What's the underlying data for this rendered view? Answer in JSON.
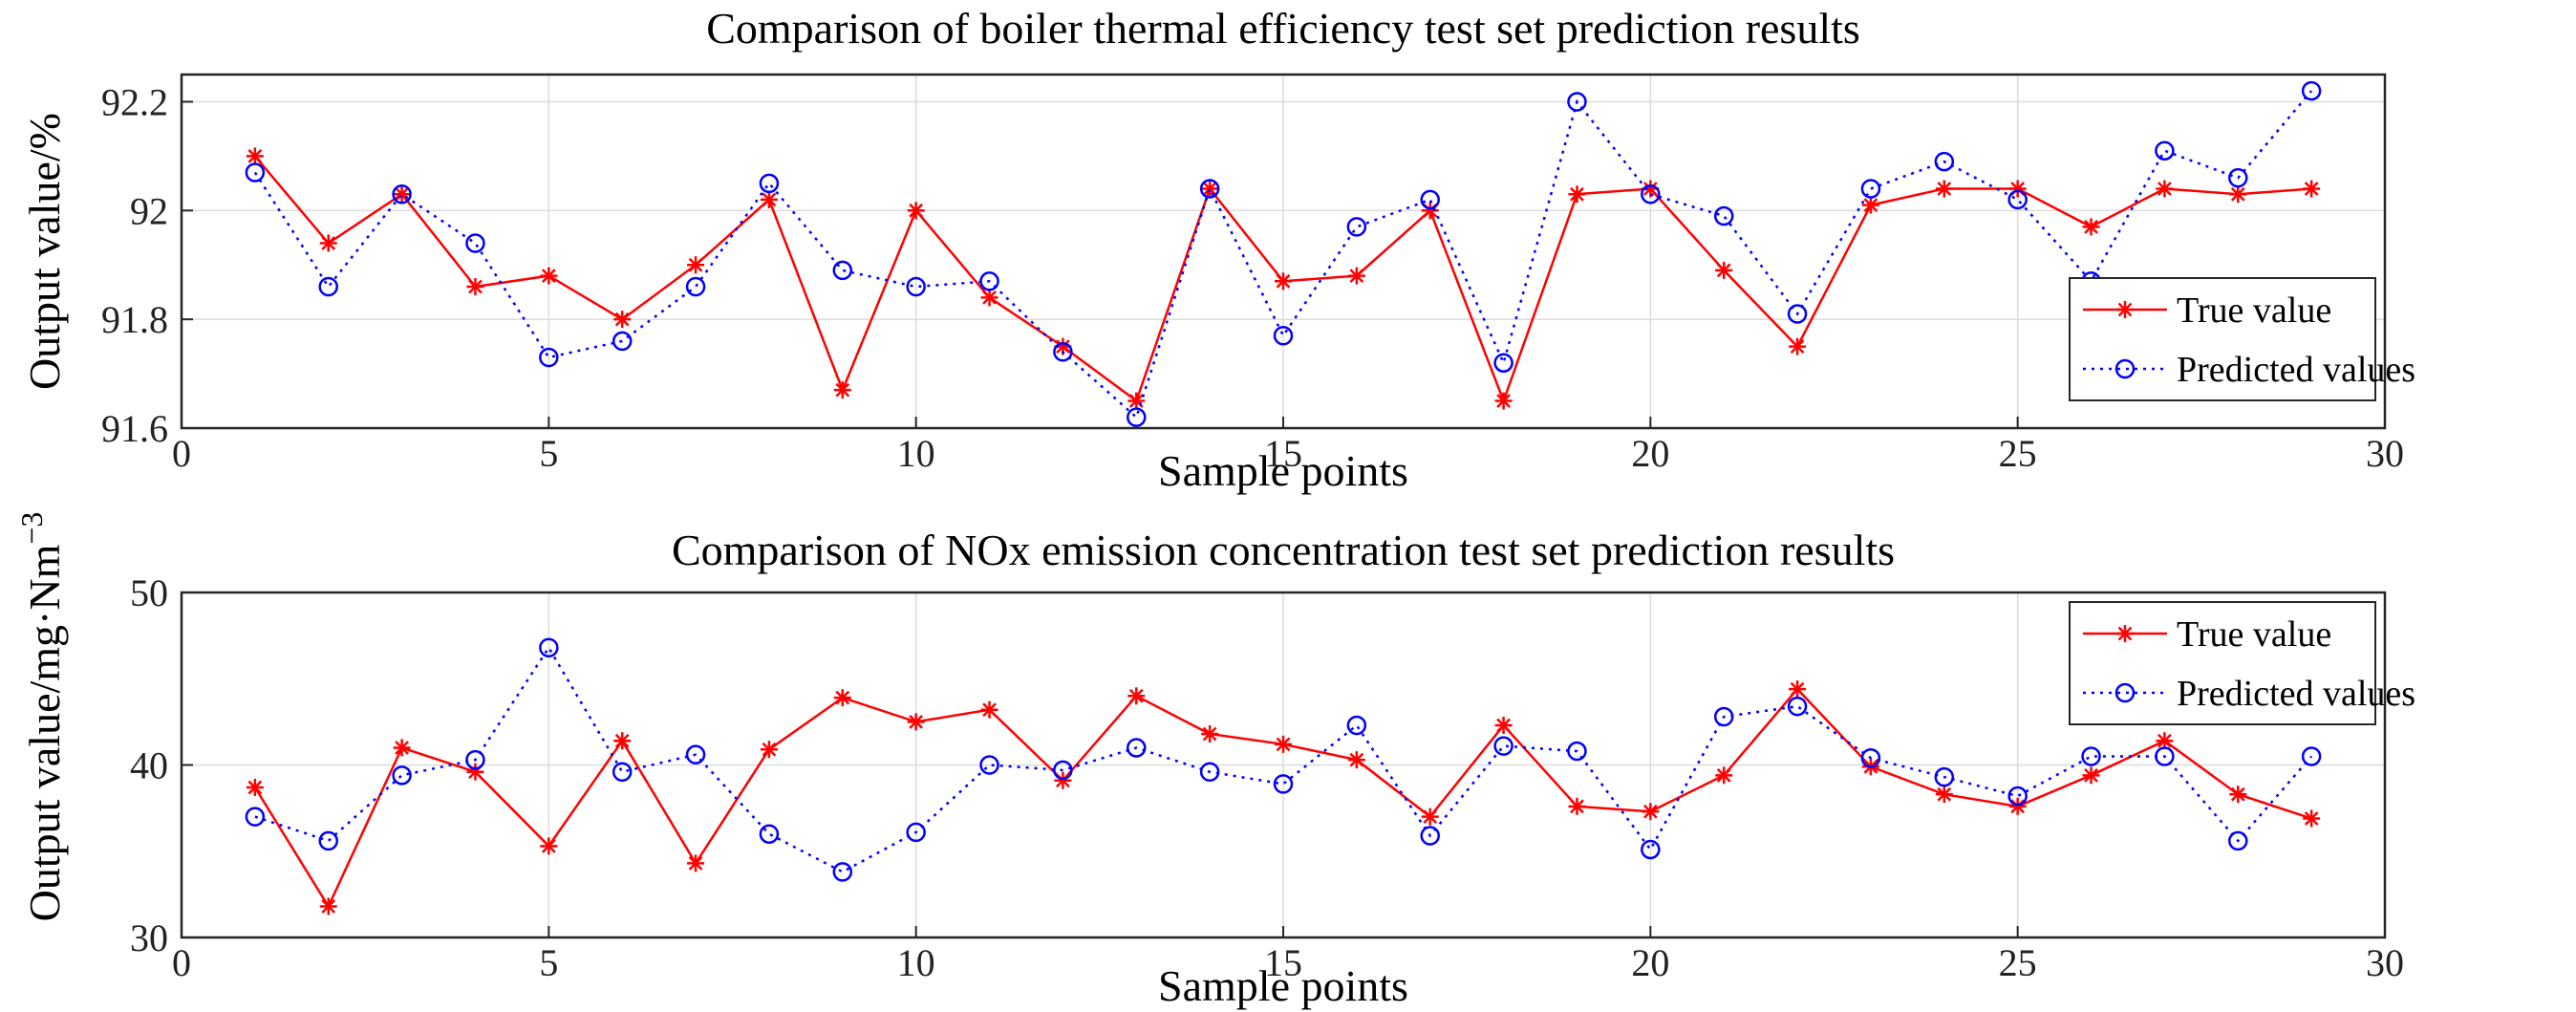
{
  "chart_data": [
    {
      "type": "line",
      "title": "Comparison of boiler thermal efficiency test set prediction results",
      "xlabel": "Sample points",
      "ylabel": "Output value/%",
      "xlim": [
        0,
        30
      ],
      "ylim": [
        91.6,
        92.25
      ],
      "xticks": [
        0,
        5,
        10,
        15,
        20,
        25,
        30
      ],
      "yticks": [
        91.6,
        91.8,
        92,
        92.2
      ],
      "ytick_labels": [
        "91.6",
        "91.8",
        "92",
        "92.2"
      ],
      "grid": true,
      "legend_position": "bottom-right",
      "x": [
        1,
        2,
        3,
        4,
        5,
        6,
        7,
        8,
        9,
        10,
        11,
        12,
        13,
        14,
        15,
        16,
        17,
        18,
        19,
        20,
        21,
        22,
        23,
        24,
        25,
        26,
        27,
        28,
        29
      ],
      "series": [
        {
          "name": "True value",
          "color": "#ff0000",
          "marker": "asterisk",
          "line_style": "solid",
          "values": [
            92.1,
            91.94,
            92.03,
            91.86,
            91.88,
            91.8,
            91.9,
            92.02,
            91.67,
            92.0,
            91.84,
            91.75,
            91.65,
            92.04,
            91.87,
            91.88,
            92.0,
            91.65,
            92.03,
            92.04,
            91.89,
            91.75,
            92.01,
            92.04,
            92.04,
            91.97,
            92.04,
            92.03,
            92.04
          ]
        },
        {
          "name": "Predicted values",
          "color": "#0000ff",
          "marker": "circle",
          "line_style": "dotted",
          "values": [
            92.07,
            91.86,
            92.03,
            91.94,
            91.73,
            91.76,
            91.86,
            92.05,
            91.89,
            91.86,
            91.87,
            91.74,
            91.62,
            92.04,
            91.77,
            91.97,
            92.02,
            91.72,
            92.2,
            92.03,
            91.99,
            91.81,
            92.04,
            92.09,
            92.02,
            91.87,
            92.11,
            92.06,
            92.22
          ]
        }
      ]
    },
    {
      "type": "line",
      "title": "Comparison of NOx emission concentration test set prediction results",
      "xlabel": "Sample points",
      "ylabel": "Output value/mg·Nm",
      "ylabel_superscript": "−3",
      "xlim": [
        0,
        30
      ],
      "ylim": [
        30,
        50
      ],
      "xticks": [
        0,
        5,
        10,
        15,
        20,
        25,
        30
      ],
      "yticks": [
        30,
        40,
        50
      ],
      "ytick_labels": [
        "30",
        "40",
        "50"
      ],
      "grid": true,
      "legend_position": "top-right",
      "x": [
        1,
        2,
        3,
        4,
        5,
        6,
        7,
        8,
        9,
        10,
        11,
        12,
        13,
        14,
        15,
        16,
        17,
        18,
        19,
        20,
        21,
        22,
        23,
        24,
        25,
        26,
        27,
        28,
        29
      ],
      "series": [
        {
          "name": "True value",
          "color": "#ff0000",
          "marker": "asterisk",
          "line_style": "solid",
          "values": [
            38.7,
            31.8,
            41.0,
            39.6,
            35.3,
            41.4,
            34.3,
            40.9,
            43.9,
            42.5,
            43.2,
            39.1,
            44.0,
            41.8,
            41.2,
            40.3,
            37.0,
            42.3,
            37.6,
            37.3,
            39.4,
            44.4,
            39.9,
            38.3,
            37.6,
            39.4,
            41.4,
            38.3,
            36.9
          ]
        },
        {
          "name": "Predicted values",
          "color": "#0000ff",
          "marker": "circle",
          "line_style": "dotted",
          "values": [
            37.0,
            35.6,
            39.4,
            40.3,
            46.8,
            39.6,
            40.6,
            36.0,
            33.8,
            36.1,
            40.0,
            39.7,
            41.0,
            39.6,
            38.9,
            42.3,
            35.9,
            41.1,
            40.8,
            35.1,
            42.8,
            43.4,
            40.4,
            39.3,
            38.2,
            40.5,
            40.5,
            35.6,
            40.5
          ]
        }
      ]
    }
  ]
}
